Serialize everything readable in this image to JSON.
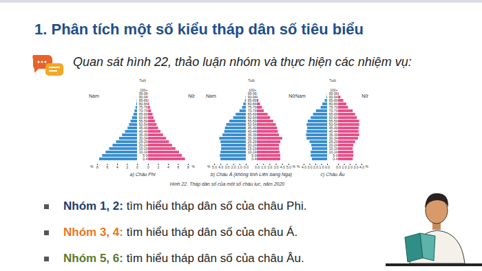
{
  "title": "1. Phân tích một số kiểu tháp dân số tiêu biểu",
  "instruction": "Quan sát hình 22, thảo luận nhóm và thực hiện các nhiệm vụ:",
  "figure_caption": "Hình 22. Tháp dân số của một số châu lục, năm 2020",
  "tasks": [
    {
      "label": "Nhóm 1, 2:",
      "text": " tìm hiểu tháp dân số của châu Phi.",
      "color": "#1b3d6e"
    },
    {
      "label": "Nhóm 3, 4:",
      "text": " tìm hiểu tháp dân số của châu Á.",
      "color": "#e8781e"
    },
    {
      "label": "Nhóm 5, 6:",
      "text": " tìm hiểu tháp dân số của châu Âu.",
      "color": "#5b7a2a"
    }
  ],
  "chart_data": [
    {
      "type": "bar",
      "orientation": "horizontal",
      "title": "a) Châu Phi",
      "x_label": "%",
      "y_label": "Tuổi",
      "categories": [
        "100+",
        "95-99",
        "90-94",
        "85-89",
        "80-84",
        "75-79",
        "70-74",
        "65-69",
        "60-64",
        "55-59",
        "50-54",
        "45-49",
        "40-44",
        "35-39",
        "30-34",
        "25-29",
        "20-24",
        "15-19",
        "10-14",
        "5-9",
        "0-4"
      ],
      "series": [
        {
          "name": "Nam",
          "color": "#3a8fd0",
          "values": [
            0,
            0,
            0.01,
            0.05,
            0.15,
            0.3,
            0.5,
            0.7,
            1.0,
            1.3,
            1.6,
            1.9,
            2.4,
            3.0,
            3.6,
            4.2,
            4.9,
            5.6,
            6.3,
            7.0,
            7.6
          ]
        },
        {
          "name": "Nữ",
          "color": "#e8508a",
          "values": [
            0,
            0.01,
            0.02,
            0.08,
            0.2,
            0.4,
            0.6,
            0.9,
            1.1,
            1.4,
            1.7,
            2.0,
            2.5,
            3.0,
            3.6,
            4.2,
            4.8,
            5.5,
            6.2,
            6.8,
            7.4
          ]
        }
      ],
      "xlim": [
        0,
        8
      ],
      "xticks": [
        0,
        2,
        4,
        6,
        8
      ]
    },
    {
      "type": "bar",
      "orientation": "horizontal",
      "title": "b) Châu Á (không tính Liên bang Nga)",
      "x_label": "%",
      "y_label": "Tuổi",
      "categories": [
        "100+",
        "95-99",
        "90-94",
        "85-89",
        "80-84",
        "75-79",
        "70-74",
        "65-69",
        "60-64",
        "55-59",
        "50-54",
        "45-49",
        "40-44",
        "35-39",
        "30-34",
        "25-29",
        "20-24",
        "15-19",
        "10-14",
        "5-9",
        "0-4"
      ],
      "series": [
        {
          "name": "Nam",
          "color": "#3a8fd0",
          "values": [
            0,
            0.01,
            0.05,
            0.15,
            0.4,
            0.6,
            1.0,
            1.6,
            2.0,
            2.6,
            3.1,
            3.3,
            3.4,
            3.7,
            4.2,
            4.0,
            3.9,
            3.9,
            4.0,
            4.1,
            4.0
          ]
        },
        {
          "name": "Nữ",
          "color": "#e8508a",
          "values": [
            0,
            0.02,
            0.1,
            0.25,
            0.5,
            0.8,
            1.1,
            1.7,
            2.1,
            2.6,
            3.0,
            3.2,
            3.3,
            3.5,
            4.0,
            3.7,
            3.5,
            3.5,
            3.6,
            3.7,
            3.7
          ]
        }
      ],
      "xlim": [
        0,
        5
      ],
      "xticks": [
        0,
        1,
        2,
        3,
        4,
        5
      ]
    },
    {
      "type": "bar",
      "orientation": "horizontal",
      "title": "c) Châu Âu",
      "x_label": "%",
      "y_label": "Tuổi",
      "categories": [
        "100+",
        "95-99",
        "90-94",
        "85-89",
        "80-84",
        "75-79",
        "70-74",
        "65-69",
        "60-64",
        "55-59",
        "50-54",
        "45-49",
        "40-44",
        "35-39",
        "30-34",
        "25-29",
        "20-24",
        "15-19",
        "10-14",
        "5-9",
        "0-4"
      ],
      "series": [
        {
          "name": "Nam",
          "color": "#3a8fd0",
          "values": [
            0,
            0.02,
            0.1,
            0.4,
            0.8,
            1.1,
            1.9,
            2.4,
            2.8,
            3.3,
            3.5,
            3.4,
            3.5,
            3.6,
            3.5,
            3.0,
            2.7,
            2.6,
            2.8,
            2.8,
            2.6
          ]
        },
        {
          "name": "Nữ",
          "color": "#e8508a",
          "values": [
            0.01,
            0.1,
            0.4,
            0.9,
            1.4,
            1.7,
            2.5,
            2.9,
            3.2,
            3.6,
            3.6,
            3.5,
            3.5,
            3.6,
            3.4,
            2.9,
            2.6,
            2.5,
            2.6,
            2.6,
            2.5
          ]
        }
      ],
      "xlim": [
        0,
        4
      ],
      "xticks": [
        0,
        1,
        2,
        3,
        4
      ]
    }
  ]
}
